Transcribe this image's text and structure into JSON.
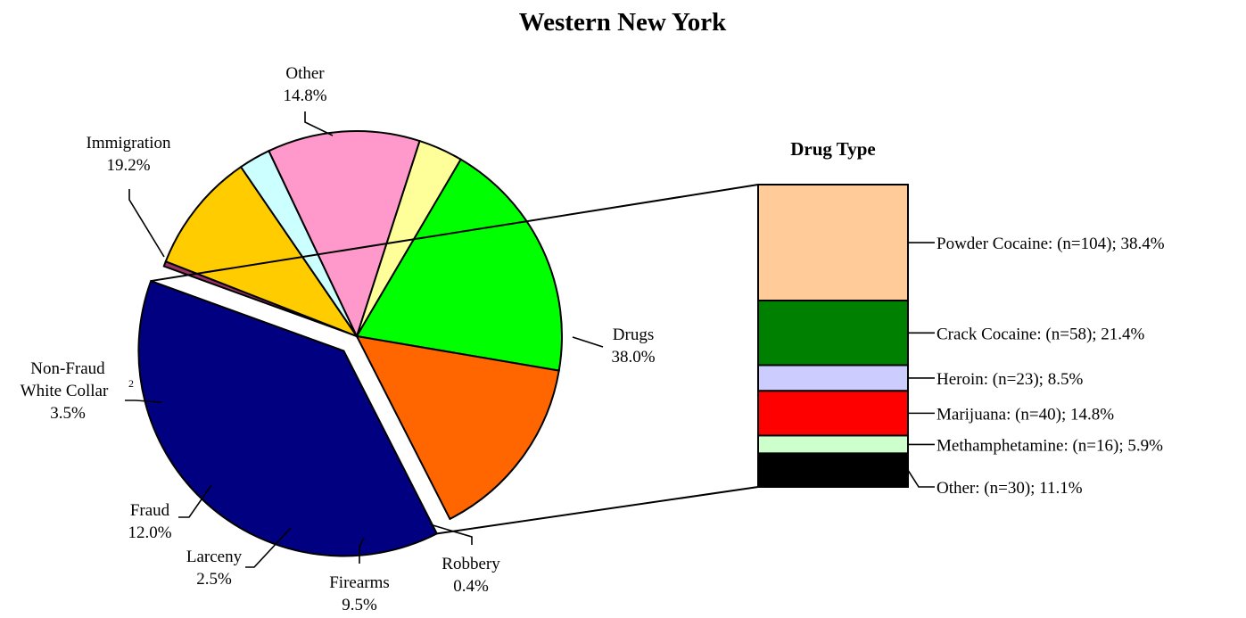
{
  "chart_data": [
    {
      "type": "pie",
      "title": "Western New York",
      "slices": [
        {
          "label": "Drugs",
          "value": 38.0,
          "value_label": "38.0%",
          "color": "#000080",
          "exploded": true
        },
        {
          "label": "Robbery",
          "value": 0.4,
          "value_label": "0.4%",
          "color": "#993366"
        },
        {
          "label": "Firearms",
          "value": 9.5,
          "value_label": "9.5%",
          "color": "#FFCC00"
        },
        {
          "label": "Larceny",
          "value": 2.5,
          "value_label": "2.5%",
          "color": "#CCFFFF"
        },
        {
          "label": "Fraud",
          "value": 12.0,
          "value_label": "12.0%",
          "color": "#FF99CC"
        },
        {
          "label": "Non-Fraud",
          "label_line2": "White Collar",
          "footnote": "2",
          "value": 3.5,
          "value_label": "3.5%",
          "color": "#FFFF99"
        },
        {
          "label": "Immigration",
          "value": 19.2,
          "value_label": "19.2%",
          "color": "#00FF00"
        },
        {
          "label": "Other",
          "value": 14.8,
          "value_label": "14.8%",
          "color": "#FF6600"
        }
      ]
    },
    {
      "type": "bar",
      "stacked": true,
      "title": "Drug Type",
      "segments": [
        {
          "label": "Powder Cocaine:  (n=104); 38.4%",
          "n": 104,
          "value": 38.4,
          "color": "#FFCC99"
        },
        {
          "label": "Crack Cocaine:  (n=58); 21.4%",
          "n": 58,
          "value": 21.4,
          "color": "#008000"
        },
        {
          "label": "Heroin:  (n=23); 8.5%",
          "n": 23,
          "value": 8.5,
          "color": "#CCCCFF"
        },
        {
          "label": "Marijuana:  (n=40); 14.8%",
          "n": 40,
          "value": 14.8,
          "color": "#FF0000"
        },
        {
          "label": "Methamphetamine:  (n=16); 5.9%",
          "n": 16,
          "value": 5.9,
          "color": "#CCFFCC"
        },
        {
          "label": "Other:  (n=30); 11.1%",
          "n": 30,
          "value": 11.1,
          "color": "#000000"
        }
      ]
    }
  ]
}
